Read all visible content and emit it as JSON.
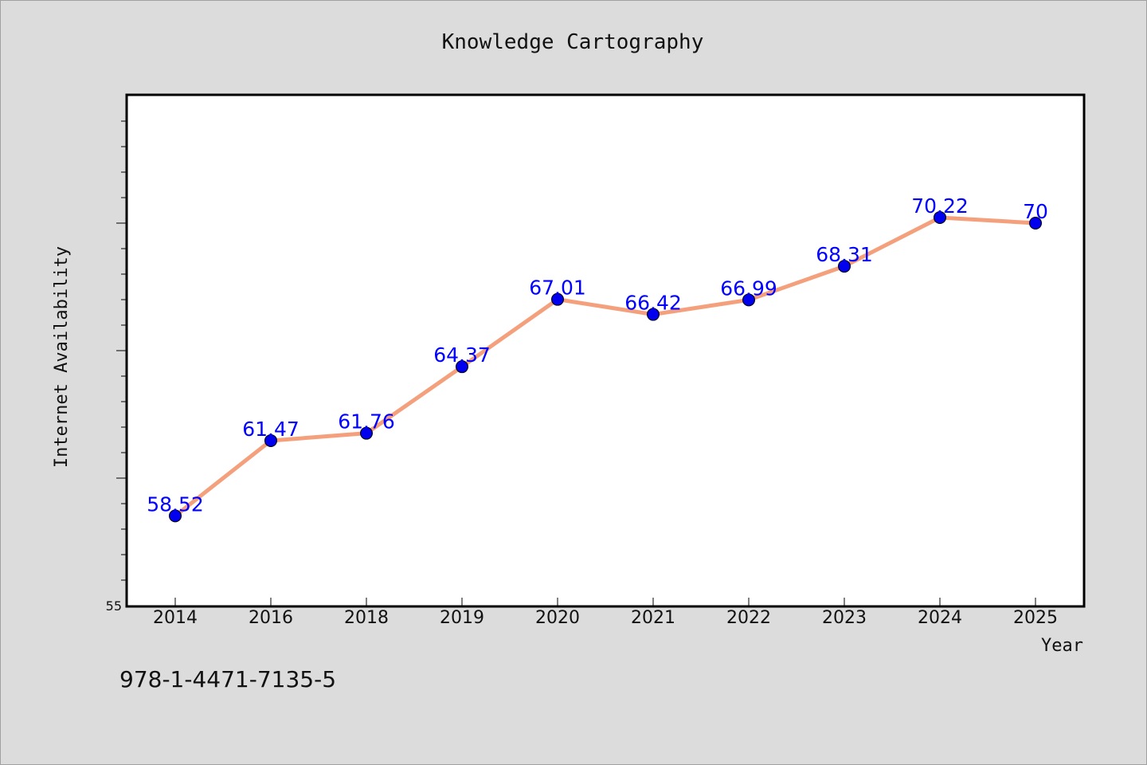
{
  "chart_data": {
    "type": "line",
    "title": "Knowledge Cartography",
    "xlabel": "Year",
    "ylabel": "Internet Availability",
    "categories": [
      "2014",
      "2016",
      "2018",
      "2019",
      "2020",
      "2021",
      "2022",
      "2023",
      "2024",
      "2025"
    ],
    "series": [
      {
        "values": [
          58.52,
          61.47,
          61.76,
          64.37,
          67.01,
          66.42,
          66.99,
          68.31,
          70.22,
          70.0
        ],
        "data_labels": [
          "58.52",
          "61.47",
          "61.76",
          "64.37",
          "67.01",
          "66.42",
          "66.99",
          "68.31",
          "70.22",
          "70"
        ],
        "line_color": "#f4a07c",
        "marker_color": "#0000ee"
      }
    ],
    "ylim": [
      55,
      75
    ],
    "ytick_labels": [
      {
        "value": 55,
        "label": "55"
      }
    ],
    "grid": false,
    "legend": "none"
  },
  "footer_text": "978-1-4471-7135-5",
  "colors": {
    "background": "#dcdcdc",
    "plot_background": "#ffffff",
    "data_label": "#0000ff"
  }
}
